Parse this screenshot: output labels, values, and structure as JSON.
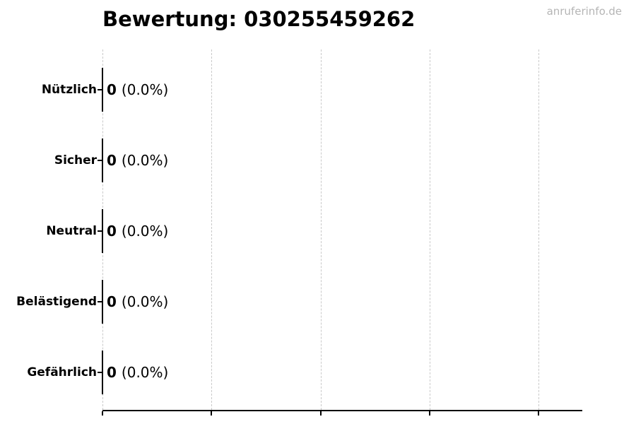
{
  "page": {
    "watermark": "anruferinfo.de",
    "background": "#ffffff"
  },
  "chart_data": {
    "type": "bar",
    "orientation": "horizontal",
    "title": "Bewertung: 030255459262",
    "categories": [
      "Nützlich",
      "Sicher",
      "Neutral",
      "Belästigend",
      "Gefährlich"
    ],
    "values": [
      0,
      0,
      0,
      0,
      0
    ],
    "percentages": [
      "0.0%",
      "0.0%",
      "0.0%",
      "0.0%",
      "0.0%"
    ],
    "rows": [
      {
        "label": "Nützlich",
        "count": "0",
        "percent": "(0.0%)"
      },
      {
        "label": "Sicher",
        "count": "0",
        "percent": "(0.0%)"
      },
      {
        "label": "Neutral",
        "count": "0",
        "percent": "(0.0%)"
      },
      {
        "label": "Belästigend",
        "count": "0",
        "percent": "(0.0%)"
      },
      {
        "label": "Gefährlich",
        "count": "0",
        "percent": "(0.0%)"
      }
    ],
    "xlabel": "",
    "ylabel": "",
    "xlim": [
      0,
      1.1
    ],
    "xticks": [
      0,
      0.25,
      0.5,
      0.75,
      1.0
    ],
    "xtick_labels_shown": false,
    "legend": "none",
    "grid": "vertical-dashed",
    "colors": {
      "bar_edge": "#000000",
      "gridline": "#c9c9c9",
      "text": "#000000",
      "watermark": "#b5b5b5"
    }
  }
}
